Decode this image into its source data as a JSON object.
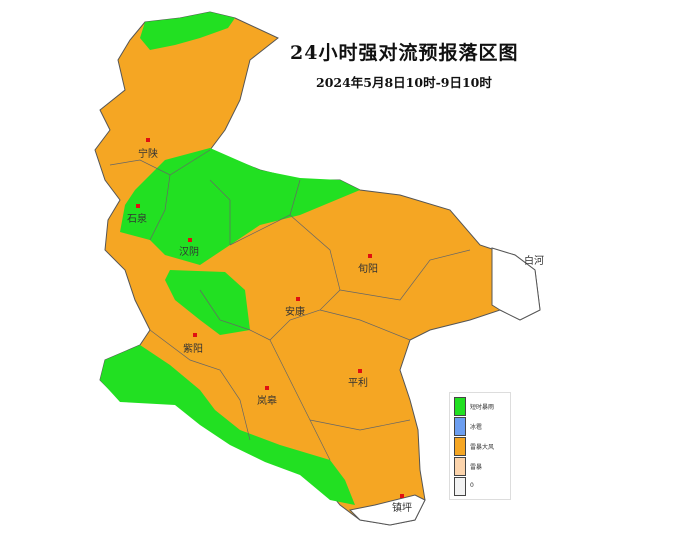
{
  "title": "24小时强对流预报落区图",
  "subtitle": "2024年5月8日10时-9日10时",
  "colors": {
    "short_heavy_rain": "#22e022",
    "hail": "#6c9ef0",
    "thunderstorm_gale": "#f5a623",
    "thunderstorm": "#fcd4ac",
    "none": "#f2f2f2"
  },
  "cities": [
    {
      "name": "宁陕"
    },
    {
      "name": "石泉"
    },
    {
      "name": "汉阴"
    },
    {
      "name": "紫阳"
    },
    {
      "name": "安康"
    },
    {
      "name": "旬阳"
    },
    {
      "name": "白河"
    },
    {
      "name": "平利"
    },
    {
      "name": "岚皋"
    },
    {
      "name": "镇坪"
    }
  ],
  "legend": [
    {
      "label": "短时暴雨",
      "color": "#22e022"
    },
    {
      "label": "冰雹",
      "color": "#6c9ef0"
    },
    {
      "label": "雷暴大风",
      "color": "#f5a623"
    },
    {
      "label": "雷暴",
      "color": "#fcd4ac"
    },
    {
      "label": "0",
      "color": "#f2f2f2"
    }
  ]
}
